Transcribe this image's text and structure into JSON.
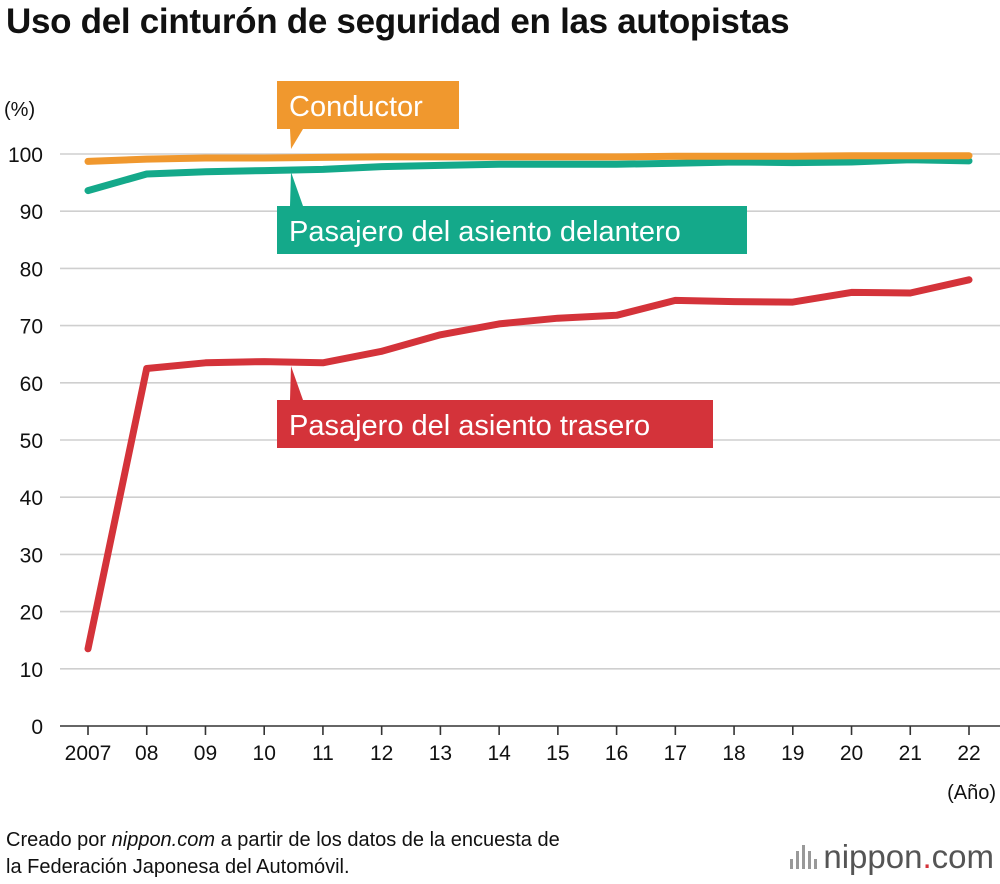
{
  "chart_data": {
    "type": "line",
    "title": "Uso del cinturón de seguridad en las autopistas",
    "ylabel": "(%)",
    "xlabel": "(Año)",
    "ylim": [
      0,
      100
    ],
    "yticks": [
      0,
      10,
      20,
      30,
      40,
      50,
      60,
      70,
      80,
      90,
      100
    ],
    "categories": [
      "2007",
      "08",
      "09",
      "10",
      "11",
      "12",
      "13",
      "14",
      "15",
      "16",
      "17",
      "18",
      "19",
      "20",
      "21",
      "22"
    ],
    "series": [
      {
        "name": "Conductor",
        "color": "#f0982e",
        "values": [
          98.7,
          99.1,
          99.3,
          99.3,
          99.4,
          99.5,
          99.5,
          99.5,
          99.5,
          99.5,
          99.6,
          99.6,
          99.6,
          99.7,
          99.7,
          99.7
        ]
      },
      {
        "name": "Pasajero del asiento delantero",
        "color": "#14a98a",
        "values": [
          93.6,
          96.5,
          96.9,
          97.1,
          97.3,
          97.8,
          98.0,
          98.2,
          98.2,
          98.2,
          98.4,
          98.6,
          98.5,
          98.6,
          99.0,
          98.8
        ]
      },
      {
        "name": "Pasajero del asiento trasero",
        "color": "#d4333a",
        "values": [
          13.5,
          62.5,
          63.5,
          63.7,
          63.5,
          65.5,
          68.4,
          70.3,
          71.3,
          71.8,
          74.4,
          74.2,
          74.1,
          75.8,
          75.7,
          78.0
        ]
      }
    ]
  },
  "source": {
    "prefix": "Creado por ",
    "site": "nippon.com",
    "suffix": " a partir de los datos de la encuesta de",
    "line2": "la Federación Japonesa del Automóvil."
  },
  "brand": {
    "name_part1": "nippon",
    "dot": ".",
    "name_part2": "com"
  }
}
